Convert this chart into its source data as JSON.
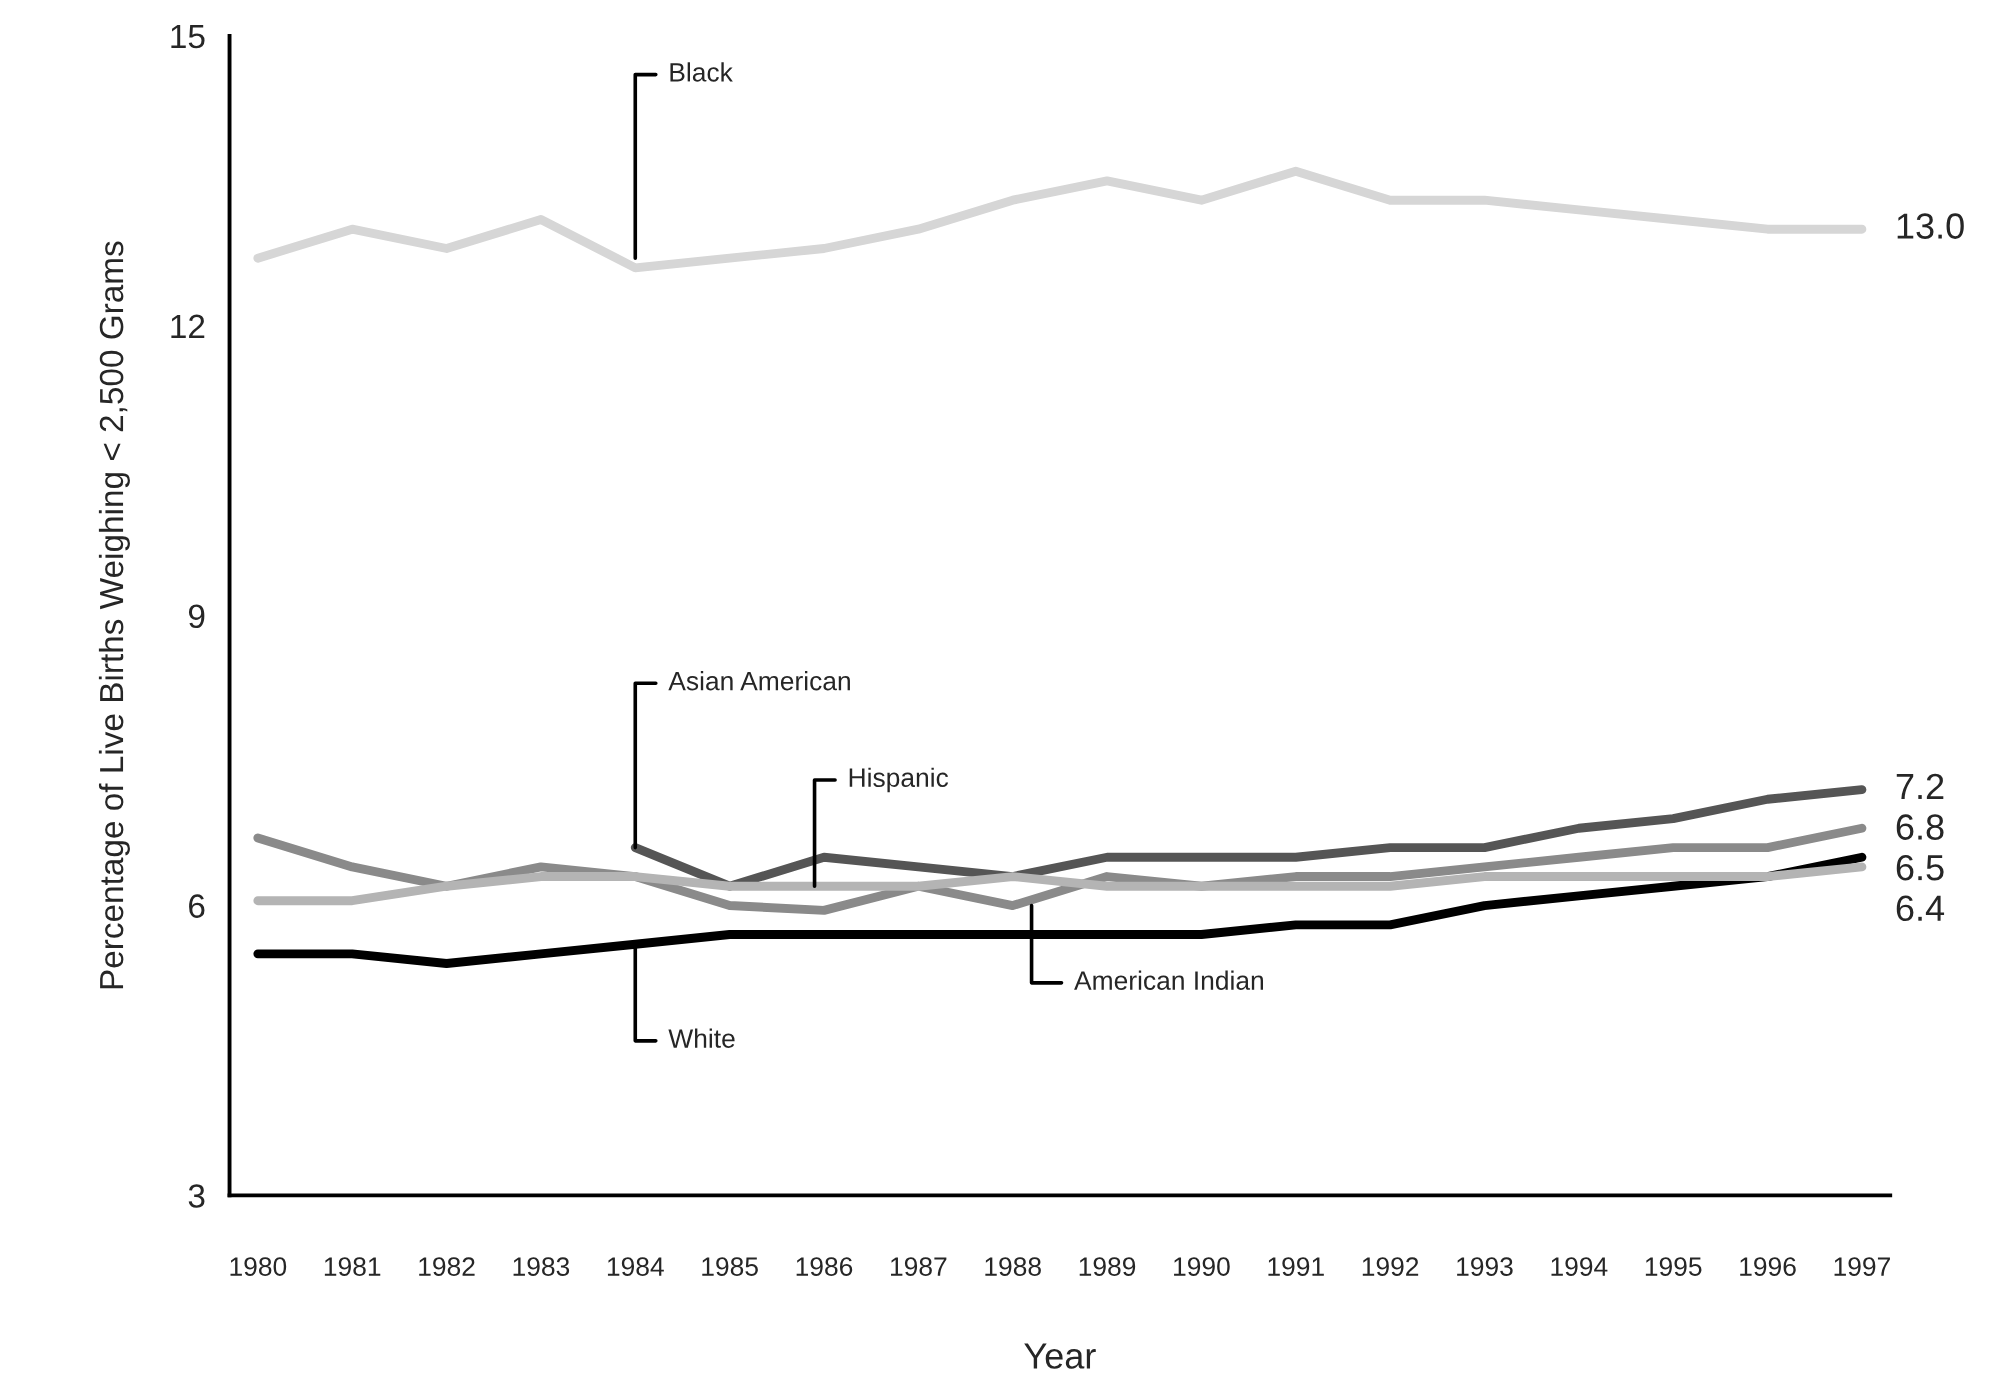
{
  "chart_data": {
    "type": "line",
    "xlabel": "Year",
    "ylabel": "Percentage of Live Births Weighing < 2,500 Grams",
    "x": [
      1980,
      1981,
      1982,
      1983,
      1984,
      1985,
      1986,
      1987,
      1988,
      1989,
      1990,
      1991,
      1992,
      1993,
      1994,
      1995,
      1996,
      1997
    ],
    "xlim": [
      1979.7,
      1997.3
    ],
    "xticks": [
      1980,
      1981,
      1982,
      1983,
      1984,
      1985,
      1986,
      1987,
      1988,
      1989,
      1990,
      1991,
      1992,
      1993,
      1994,
      1995,
      1996,
      1997
    ],
    "ylim": [
      3,
      15
    ],
    "yticks": [
      3,
      6,
      9,
      12,
      15
    ],
    "grid": false,
    "legend": false,
    "marker": "none",
    "line_style": "solid",
    "series": [
      {
        "color": "#d6d6d6",
        "values": [
          12.7,
          13.0,
          12.8,
          13.1,
          12.6,
          12.7,
          12.8,
          13.0,
          13.3,
          13.5,
          13.3,
          13.6,
          13.3,
          13.3,
          13.2,
          13.1,
          13.0,
          13.0
        ],
        "value_labels": [
          null,
          null,
          null,
          null,
          null,
          null,
          null,
          null,
          null,
          null,
          null,
          null,
          null,
          null,
          null,
          null,
          null,
          "13.0"
        ]
      },
      {
        "color": "#555555",
        "values": [
          null,
          null,
          null,
          null,
          6.6,
          6.2,
          6.5,
          6.4,
          6.3,
          6.5,
          6.5,
          6.5,
          6.6,
          6.6,
          6.8,
          6.9,
          7.1,
          7.2
        ],
        "value_labels": [
          null,
          null,
          null,
          null,
          null,
          null,
          null,
          null,
          null,
          null,
          null,
          null,
          null,
          null,
          null,
          null,
          null,
          "7.2"
        ]
      },
      {
        "color": "#8a8a8a",
        "values": [
          6.7,
          6.4,
          6.2,
          6.4,
          6.3,
          6.0,
          5.95,
          6.2,
          6.0,
          6.3,
          6.2,
          6.3,
          6.3,
          6.4,
          6.5,
          6.6,
          6.6,
          6.8
        ],
        "value_labels": [
          null,
          null,
          null,
          null,
          null,
          null,
          null,
          null,
          null,
          null,
          null,
          null,
          null,
          null,
          null,
          null,
          null,
          "6.8"
        ]
      },
      {
        "color": "#000000",
        "values": [
          5.5,
          5.5,
          5.4,
          5.5,
          5.6,
          5.7,
          5.7,
          5.7,
          5.7,
          5.7,
          5.7,
          5.8,
          5.8,
          6.0,
          6.1,
          6.2,
          6.3,
          6.5
        ],
        "value_labels": [
          null,
          null,
          null,
          null,
          null,
          null,
          null,
          null,
          null,
          null,
          null,
          null,
          null,
          null,
          null,
          null,
          null,
          "6.5"
        ]
      },
      {
        "color": "#b4b4b4",
        "values": [
          6.05,
          6.05,
          6.2,
          6.3,
          6.3,
          6.2,
          6.2,
          6.2,
          6.3,
          6.2,
          6.2,
          6.2,
          6.2,
          6.3,
          6.3,
          6.3,
          6.3,
          6.4
        ],
        "value_labels": [
          null,
          null,
          null,
          null,
          null,
          null,
          null,
          null,
          null,
          null,
          null,
          null,
          null,
          null,
          null,
          null,
          null,
          "6.4"
        ]
      }
    ],
    "annotations": [
      {
        "text": "Black",
        "x": 1984,
        "y": 12.7
      },
      {
        "text": "Asian American",
        "x": 1984,
        "y": 6.6
      },
      {
        "text": "Hispanic",
        "x": 1985.9,
        "y": 6.2
      },
      {
        "text": "White",
        "x": 1984,
        "y": 5.6
      },
      {
        "text": "American Indian",
        "x": 1988.2,
        "y": 6.0
      }
    ]
  }
}
